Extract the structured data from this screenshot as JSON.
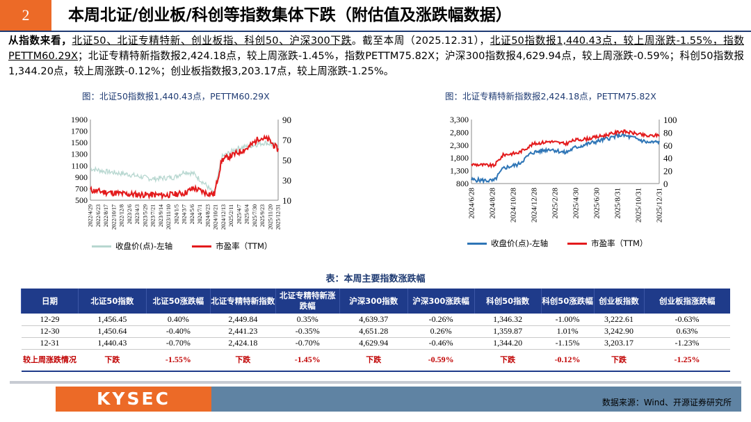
{
  "header": {
    "number": "2",
    "title": "本周北证/创业板/科创等指数集体下跌（附估值及涨跌幅数据）"
  },
  "summary": {
    "lead": "从指数来看，",
    "part1": "北证50、北证专精特新、创业板指、科创50、沪深300下跌",
    "part2": "。截至本周（2025.12.31），",
    "part3": "北证50指数报1,440.43点，较上周涨跌-1.55%，指数PETTM60.29X",
    "part4": "；北证专精特新指数报2,424.18点，较上周涨跌-1.45%，指数PETTM75.82X",
    "part5": "；沪深300指数报4,629.94点，较上周涨跌-0.59%；科创50指数报1,344.20点，较上周涨跌-0.12%；创业板指数报3,203.17点，较上周涨跌-1.25%。"
  },
  "charts": [
    {
      "title": "图：北证50指数报1,440.43点，PETTM60.29X",
      "left_ticks": [
        "1900",
        "1700",
        "1500",
        "1300",
        "1100",
        "900",
        "700",
        "500"
      ],
      "right_ticks": [
        "90",
        "70",
        "50",
        "30",
        "10"
      ],
      "x_ticks": [
        "2022/4/29",
        "2022/6/23",
        "2022/8/17",
        "2022/10/17",
        "2022/12/8",
        "2023/2/6",
        "2023/4/3",
        "2023/5/29",
        "2023/7/21",
        "2023/9/14",
        "2023/11/10",
        "2024/1/5",
        "2024/3/7",
        "2024/5/6",
        "2024/7/1",
        "2024/8/23",
        "2024/10/21",
        "2024/12/13",
        "2025/2/11",
        "2025/4/7",
        "2025/6/4",
        "2025/7/30",
        "2025/9/23",
        "2025/11/20",
        "2025/12/31"
      ],
      "legend": [
        "收盘价(点)-左轴",
        "市盈率（TTM）"
      ],
      "colors": [
        "#b7d7d0",
        "#e31a1c"
      ]
    },
    {
      "title": "图：北证专精特新指数报2,424.18点，PETTM75.82X",
      "left_ticks": [
        "3,300",
        "2,800",
        "2,300",
        "1,800",
        "1,300",
        "800"
      ],
      "right_ticks": [
        "100",
        "80",
        "60",
        "40",
        "20",
        "0"
      ],
      "x_ticks": [
        "2024/6/28",
        "2024/8/28",
        "2024/10/28",
        "2024/12/28",
        "2025/2/28",
        "2025/4/30",
        "2025/6/30",
        "2025/8/31",
        "2025/10/31",
        "2025/12/31"
      ],
      "legend": [
        "收盘价(点)-左轴",
        "市盈率（TTM）"
      ],
      "colors": [
        "#2e75b6",
        "#e31a1c"
      ]
    }
  ],
  "table": {
    "title": "表：本周主要指数涨跌幅",
    "headers": [
      "日期",
      "北证50指数",
      "北证50涨跌幅",
      "北证专精特新指数",
      "北证专精特新涨跌幅",
      "沪深300指数",
      "沪深300涨跌幅",
      "科创50指数",
      "科创50涨跌幅",
      "创业板指数",
      "创业板指涨跌幅"
    ],
    "rows": [
      [
        "12-29",
        "1,456.45",
        "0.40%",
        "2,449.84",
        "0.35%",
        "4,639.37",
        "-0.26%",
        "1,346.32",
        "-1.00%",
        "3,222.61",
        "-0.63%"
      ],
      [
        "12-30",
        "1,450.64",
        "-0.40%",
        "2,441.23",
        "-0.35%",
        "4,651.28",
        "0.26%",
        "1,359.87",
        "1.01%",
        "3,242.90",
        "0.63%"
      ],
      [
        "12-31",
        "1,440.43",
        "-0.70%",
        "2,424.18",
        "-0.70%",
        "4,629.94",
        "-0.46%",
        "1,344.20",
        "-1.15%",
        "3,203.17",
        "-1.23%"
      ]
    ],
    "summary_row": [
      "较上周涨跌情况",
      "下跌",
      "-1.55%",
      "下跌",
      "-1.45%",
      "下跌",
      "-0.59%",
      "下跌",
      "-0.12%",
      "下跌",
      "-1.25%"
    ]
  },
  "footer": {
    "logo": "KYSEC",
    "source": "数据来源：Wind、开源证券研究所"
  }
}
